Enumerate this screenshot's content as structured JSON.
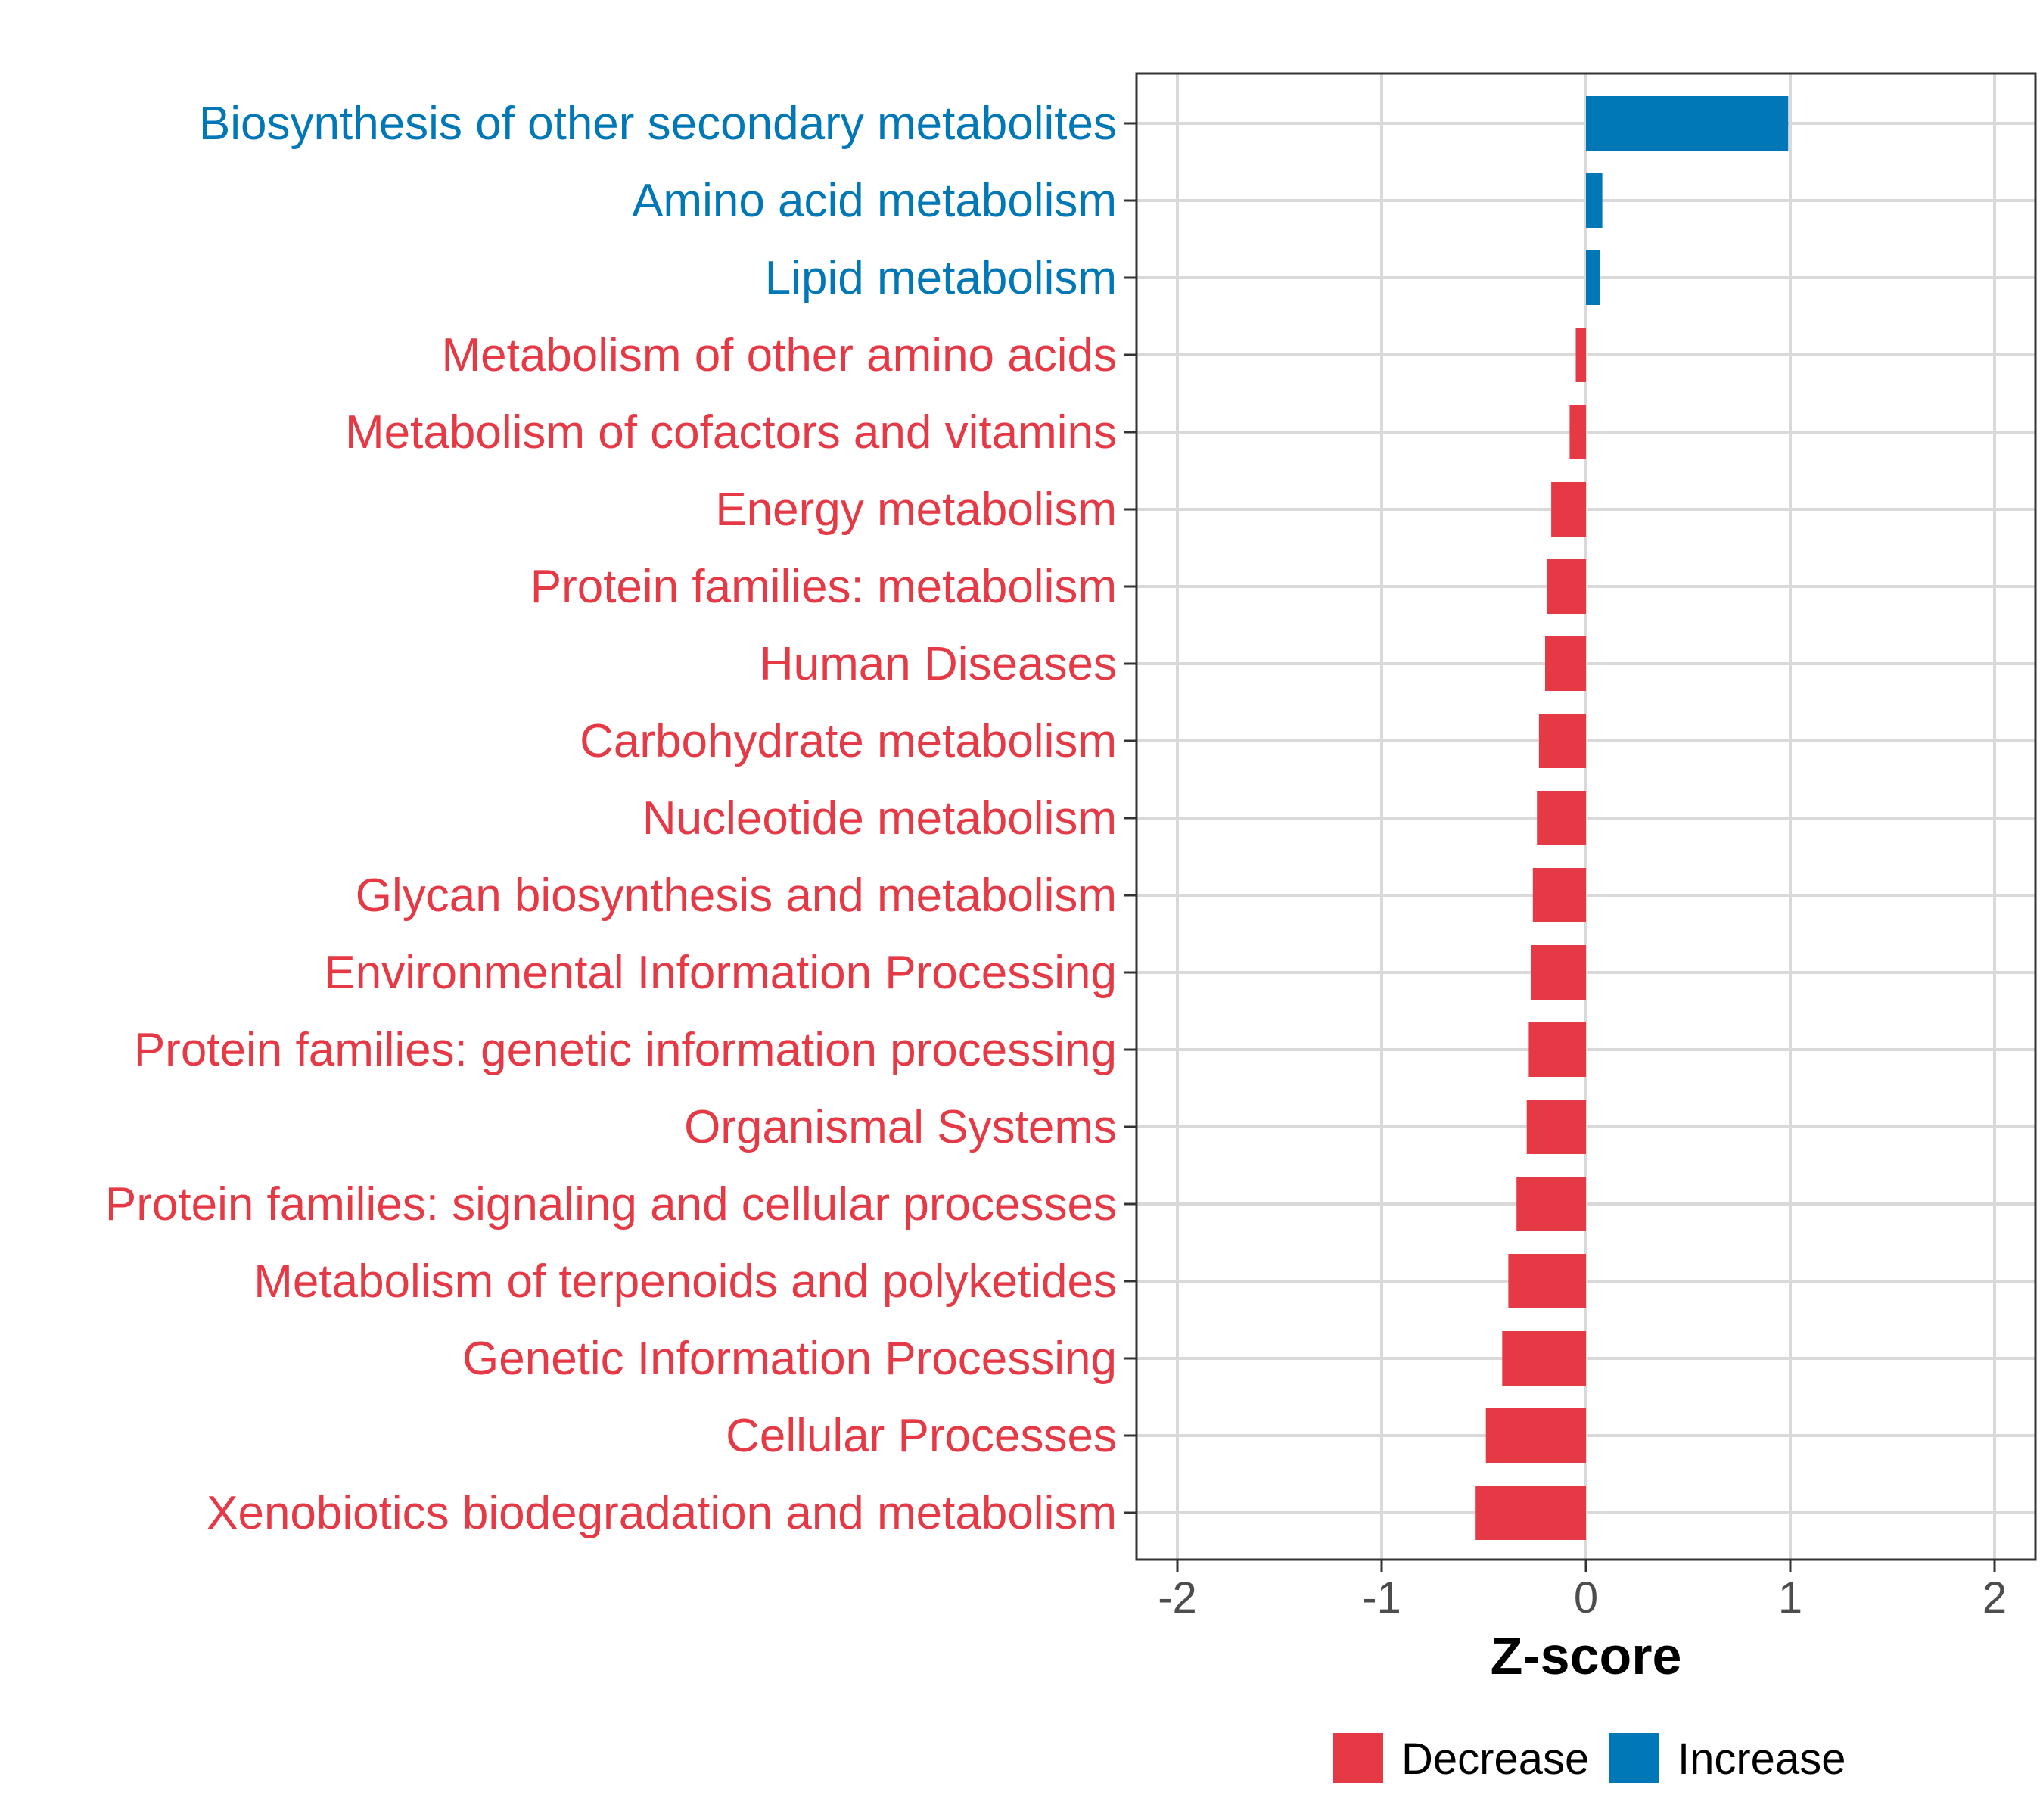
{
  "chart_data": {
    "type": "bar",
    "orientation": "horizontal",
    "categories": [
      "Biosynthesis of other secondary metabolites",
      "Amino acid metabolism",
      "Lipid metabolism",
      "Metabolism of other amino acids",
      "Metabolism of cofactors and vitamins",
      "Energy metabolism",
      "Protein families: metabolism",
      "Human Diseases",
      "Carbohydrate metabolism",
      "Nucleotide metabolism",
      "Glycan biosynthesis and metabolism",
      "Environmental Information Processing",
      "Protein families: genetic information processing",
      "Organismal Systems",
      "Protein families: signaling and cellular processes",
      "Metabolism of terpenoids and polyketides",
      "Genetic Information Processing",
      "Cellular Processes",
      "Xenobiotics biodegradation and metabolism"
    ],
    "values": [
      0.99,
      0.08,
      0.07,
      -0.05,
      -0.08,
      -0.17,
      -0.19,
      -0.2,
      -0.23,
      -0.24,
      -0.26,
      -0.27,
      -0.28,
      -0.29,
      -0.34,
      -0.38,
      -0.41,
      -0.49,
      -0.54
    ],
    "groups": [
      "Increase",
      "Increase",
      "Increase",
      "Decrease",
      "Decrease",
      "Decrease",
      "Decrease",
      "Decrease",
      "Decrease",
      "Decrease",
      "Decrease",
      "Decrease",
      "Decrease",
      "Decrease",
      "Decrease",
      "Decrease",
      "Decrease",
      "Decrease",
      "Decrease"
    ],
    "xlabel": "Z-score",
    "ylabel": "",
    "xlim": [
      -2.2,
      2.2
    ],
    "xticks": [
      -2,
      -1,
      0,
      1,
      2
    ],
    "xtick_labels": [
      "-2",
      "-1",
      "0",
      "1",
      "2"
    ],
    "grid": true,
    "legend": {
      "position": "bottom",
      "entries": [
        {
          "name": "Decrease",
          "color": "#e63946"
        },
        {
          "name": "Increase",
          "color": "#0077b6"
        }
      ]
    },
    "colors": {
      "Decrease": "#e63946",
      "Increase": "#0077b6",
      "grid": "#d9d9d9",
      "panel_border": "#333333"
    }
  }
}
